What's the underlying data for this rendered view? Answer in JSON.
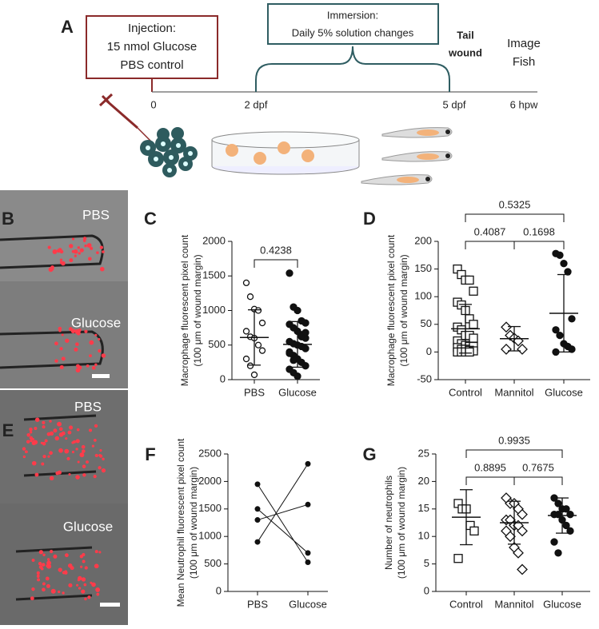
{
  "panel_letters": [
    "A",
    "B",
    "C",
    "D",
    "E",
    "F",
    "G"
  ],
  "schematic": {
    "injection": [
      "Injection:",
      "15 nmol Glucose",
      "PBS control"
    ],
    "immersion": [
      "Immersion:",
      "Daily 5% solution changes"
    ],
    "tail_wound": [
      "Tail",
      "wound"
    ],
    "image_fish": [
      "Image",
      "Fish"
    ],
    "timeline": [
      "0",
      "2 dpf",
      "5 dpf",
      "6 hpw"
    ]
  },
  "image_labels": [
    "PBS",
    "Glucose",
    "PBS",
    "Glucose"
  ],
  "chart_data": [
    {
      "type": "dot",
      "ylabel": [
        "Macrophage fluorescent pixel count",
        "(100 μm of wound margin)"
      ],
      "categories": [
        "PBS",
        "Glucose"
      ],
      "markers": [
        "open-circle",
        "filled-circle"
      ],
      "values": [
        [
          1400,
          1200,
          1020,
          1000,
          820,
          700,
          620,
          600,
          500,
          420,
          300,
          200,
          70
        ],
        [
          1540,
          1050,
          1000,
          850,
          820,
          800,
          750,
          700,
          650,
          600,
          550,
          520,
          500,
          480,
          450,
          400,
          350,
          300,
          250,
          200,
          150,
          100,
          50,
          620,
          680,
          380,
          280
        ]
      ],
      "means": [
        610,
        510
      ],
      "sds": [
        400,
        330
      ],
      "comparisons": [
        {
          "pair": [
            0,
            1
          ],
          "p": 0.4238
        }
      ],
      "ylim": [
        0,
        2000
      ],
      "yticks": [
        0,
        500,
        1000,
        1500,
        2000
      ]
    },
    {
      "type": "dot",
      "ylabel": [
        "Macrophage fluorescent pixel count",
        "(100 μm of wound margin)"
      ],
      "categories": [
        "Control",
        "Mannitol",
        "Glucose"
      ],
      "markers": [
        "open-square",
        "open-diamond",
        "filled-circle"
      ],
      "values": [
        [
          150,
          140,
          130,
          130,
          110,
          90,
          85,
          75,
          60,
          50,
          45,
          40,
          30,
          30,
          25,
          20,
          15,
          12,
          10,
          10,
          8,
          5,
          5,
          3,
          2,
          0,
          0,
          0,
          0
        ],
        [
          45,
          30,
          25,
          20,
          5,
          5
        ],
        [
          178,
          175,
          160,
          145,
          60,
          40,
          30,
          15,
          10,
          5,
          0
        ]
      ],
      "means": [
        42,
        24,
        70
      ],
      "sds": [
        44,
        22,
        70
      ],
      "comparisons": [
        {
          "pair": [
            0,
            1
          ],
          "p": 0.4087
        },
        {
          "pair": [
            1,
            2
          ],
          "p": 0.1698
        },
        {
          "pair": [
            0,
            2
          ],
          "p": 0.5325
        }
      ],
      "ylim": [
        -50,
        200
      ],
      "yticks": [
        -50,
        0,
        50,
        100,
        150,
        200
      ]
    },
    {
      "type": "paired",
      "ylabel": [
        "Mean Neutrophil fluorescent pixel count",
        "(100 μm of wound margin)"
      ],
      "categories": [
        "PBS",
        "Glucose"
      ],
      "pairs": [
        [
          1950,
          530
        ],
        [
          1500,
          700
        ],
        [
          1300,
          1580
        ],
        [
          900,
          2320
        ]
      ],
      "ylim": [
        0,
        2500
      ],
      "yticks": [
        0,
        500,
        1000,
        1500,
        2000,
        2500
      ]
    },
    {
      "type": "dot",
      "ylabel": [
        "Number of neutrophils",
        "(100 μm of wound margin)"
      ],
      "categories": [
        "Control",
        "Mannitol",
        "Glucose"
      ],
      "markers": [
        "open-square",
        "open-diamond",
        "filled-circle"
      ],
      "values": [
        [
          16,
          15,
          15,
          12,
          11,
          6
        ],
        [
          17,
          16,
          16,
          15,
          14,
          13,
          13,
          12,
          12,
          11,
          11,
          10,
          8,
          7,
          4
        ],
        [
          17,
          16,
          15,
          15,
          14,
          14,
          14,
          13,
          12,
          11,
          9,
          7
        ]
      ],
      "means": [
        13.5,
        12.5,
        13.8
      ],
      "sds": [
        5,
        3.9,
        3.2
      ],
      "comparisons": [
        {
          "pair": [
            0,
            1
          ],
          "p": 0.8895
        },
        {
          "pair": [
            1,
            2
          ],
          "p": 0.7675
        },
        {
          "pair": [
            0,
            2
          ],
          "p": 0.9935
        }
      ],
      "ylim": [
        0,
        25
      ],
      "yticks": [
        0,
        5,
        10,
        15,
        20,
        25
      ]
    }
  ]
}
